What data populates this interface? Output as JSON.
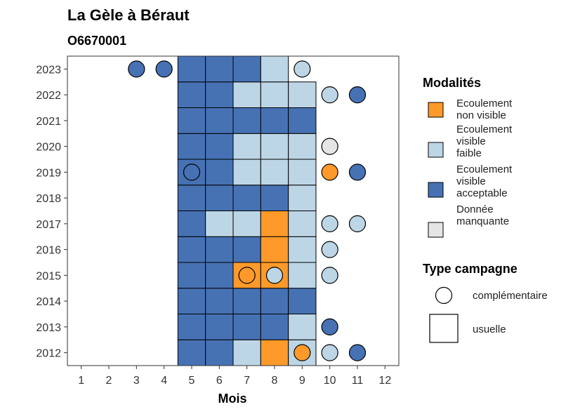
{
  "chart_data": {
    "type": "heatmap",
    "title": "La Gèle à Béraut",
    "subtitle": "O6670001",
    "xlabel": "Mois",
    "ylabel": "",
    "x_ticks": [
      "1",
      "2",
      "3",
      "4",
      "5",
      "6",
      "7",
      "8",
      "9",
      "10",
      "11",
      "12"
    ],
    "y_ticks": [
      "2012",
      "2013",
      "2014",
      "2015",
      "2016",
      "2017",
      "2018",
      "2019",
      "2020",
      "2021",
      "2022",
      "2023"
    ],
    "xlim": [
      0.5,
      12.5
    ],
    "ylim": [
      2011.5,
      2023.5
    ],
    "colors": {
      "non_visible": "#FF9A2A",
      "faible": "#BDD6E6",
      "acceptable": "#4672B4",
      "manquante": "#E5E5E5"
    },
    "legend_modalites": {
      "title": "Modalités",
      "items": [
        {
          "key": "non_visible",
          "lines": [
            "Ecoulement",
            "non visible"
          ]
        },
        {
          "key": "faible",
          "lines": [
            "Ecoulement",
            "visible",
            "faible"
          ]
        },
        {
          "key": "acceptable",
          "lines": [
            "Ecoulement",
            "visible",
            "acceptable"
          ]
        },
        {
          "key": "manquante",
          "lines": [
            "Donnée",
            "manquante"
          ]
        }
      ]
    },
    "legend_campagne": {
      "title": "Type campagne",
      "items": [
        {
          "shape": "circle",
          "label": "complémentaire"
        },
        {
          "shape": "square",
          "label": "usuelle"
        }
      ]
    },
    "tiles": [
      {
        "year": 2012,
        "month": 5,
        "value": "acceptable"
      },
      {
        "year": 2012,
        "month": 6,
        "value": "acceptable"
      },
      {
        "year": 2012,
        "month": 7,
        "value": "faible"
      },
      {
        "year": 2012,
        "month": 8,
        "value": "non_visible"
      },
      {
        "year": 2012,
        "month": 9,
        "value": "faible"
      },
      {
        "year": 2013,
        "month": 5,
        "value": "acceptable"
      },
      {
        "year": 2013,
        "month": 6,
        "value": "acceptable"
      },
      {
        "year": 2013,
        "month": 7,
        "value": "acceptable"
      },
      {
        "year": 2013,
        "month": 8,
        "value": "acceptable"
      },
      {
        "year": 2013,
        "month": 9,
        "value": "faible"
      },
      {
        "year": 2014,
        "month": 5,
        "value": "acceptable"
      },
      {
        "year": 2014,
        "month": 6,
        "value": "acceptable"
      },
      {
        "year": 2014,
        "month": 7,
        "value": "acceptable"
      },
      {
        "year": 2014,
        "month": 8,
        "value": "acceptable"
      },
      {
        "year": 2014,
        "month": 9,
        "value": "acceptable"
      },
      {
        "year": 2015,
        "month": 5,
        "value": "acceptable"
      },
      {
        "year": 2015,
        "month": 6,
        "value": "acceptable"
      },
      {
        "year": 2015,
        "month": 7,
        "value": "non_visible"
      },
      {
        "year": 2015,
        "month": 8,
        "value": "non_visible"
      },
      {
        "year": 2015,
        "month": 9,
        "value": "faible"
      },
      {
        "year": 2016,
        "month": 5,
        "value": "acceptable"
      },
      {
        "year": 2016,
        "month": 6,
        "value": "acceptable"
      },
      {
        "year": 2016,
        "month": 7,
        "value": "acceptable"
      },
      {
        "year": 2016,
        "month": 8,
        "value": "non_visible"
      },
      {
        "year": 2016,
        "month": 9,
        "value": "faible"
      },
      {
        "year": 2017,
        "month": 5,
        "value": "acceptable"
      },
      {
        "year": 2017,
        "month": 6,
        "value": "faible"
      },
      {
        "year": 2017,
        "month": 7,
        "value": "faible"
      },
      {
        "year": 2017,
        "month": 8,
        "value": "non_visible"
      },
      {
        "year": 2017,
        "month": 9,
        "value": "faible"
      },
      {
        "year": 2018,
        "month": 5,
        "value": "acceptable"
      },
      {
        "year": 2018,
        "month": 6,
        "value": "acceptable"
      },
      {
        "year": 2018,
        "month": 7,
        "value": "acceptable"
      },
      {
        "year": 2018,
        "month": 8,
        "value": "acceptable"
      },
      {
        "year": 2018,
        "month": 9,
        "value": "faible"
      },
      {
        "year": 2019,
        "month": 5,
        "value": "acceptable"
      },
      {
        "year": 2019,
        "month": 6,
        "value": "acceptable"
      },
      {
        "year": 2019,
        "month": 7,
        "value": "faible"
      },
      {
        "year": 2019,
        "month": 8,
        "value": "faible"
      },
      {
        "year": 2019,
        "month": 9,
        "value": "faible"
      },
      {
        "year": 2020,
        "month": 5,
        "value": "acceptable"
      },
      {
        "year": 2020,
        "month": 6,
        "value": "acceptable"
      },
      {
        "year": 2020,
        "month": 7,
        "value": "faible"
      },
      {
        "year": 2020,
        "month": 8,
        "value": "faible"
      },
      {
        "year": 2020,
        "month": 9,
        "value": "faible"
      },
      {
        "year": 2021,
        "month": 5,
        "value": "acceptable"
      },
      {
        "year": 2021,
        "month": 6,
        "value": "acceptable"
      },
      {
        "year": 2021,
        "month": 7,
        "value": "acceptable"
      },
      {
        "year": 2021,
        "month": 8,
        "value": "acceptable"
      },
      {
        "year": 2021,
        "month": 9,
        "value": "acceptable"
      },
      {
        "year": 2022,
        "month": 5,
        "value": "acceptable"
      },
      {
        "year": 2022,
        "month": 6,
        "value": "acceptable"
      },
      {
        "year": 2022,
        "month": 7,
        "value": "faible"
      },
      {
        "year": 2022,
        "month": 8,
        "value": "faible"
      },
      {
        "year": 2022,
        "month": 9,
        "value": "faible"
      },
      {
        "year": 2023,
        "month": 5,
        "value": "acceptable"
      },
      {
        "year": 2023,
        "month": 6,
        "value": "acceptable"
      },
      {
        "year": 2023,
        "month": 7,
        "value": "acceptable"
      },
      {
        "year": 2023,
        "month": 8,
        "value": "faible"
      }
    ],
    "points": [
      {
        "year": 2023,
        "month": 3,
        "value": "acceptable"
      },
      {
        "year": 2023,
        "month": 4,
        "value": "acceptable"
      },
      {
        "year": 2023,
        "month": 9,
        "value": "faible"
      },
      {
        "year": 2022,
        "month": 10,
        "value": "faible"
      },
      {
        "year": 2022,
        "month": 11,
        "value": "acceptable"
      },
      {
        "year": 2020,
        "month": 10,
        "value": "manquante"
      },
      {
        "year": 2019,
        "month": 5,
        "value": "acceptable"
      },
      {
        "year": 2019,
        "month": 10,
        "value": "non_visible"
      },
      {
        "year": 2019,
        "month": 11,
        "value": "acceptable"
      },
      {
        "year": 2017,
        "month": 10,
        "value": "faible"
      },
      {
        "year": 2017,
        "month": 11,
        "value": "faible"
      },
      {
        "year": 2016,
        "month": 10,
        "value": "faible"
      },
      {
        "year": 2015,
        "month": 7,
        "value": "non_visible"
      },
      {
        "year": 2015,
        "month": 8,
        "value": "faible"
      },
      {
        "year": 2015,
        "month": 10,
        "value": "faible"
      },
      {
        "year": 2013,
        "month": 10,
        "value": "acceptable"
      },
      {
        "year": 2012,
        "month": 9,
        "value": "non_visible"
      },
      {
        "year": 2012,
        "month": 10,
        "value": "faible"
      },
      {
        "year": 2012,
        "month": 11,
        "value": "acceptable"
      }
    ]
  }
}
